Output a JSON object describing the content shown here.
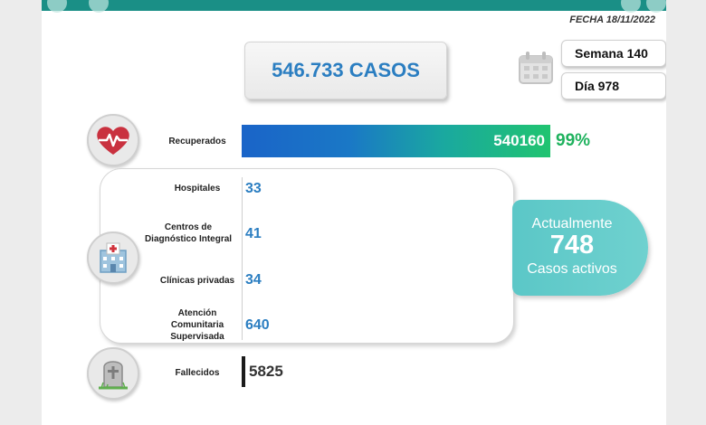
{
  "header": {
    "date_label": "FECHA 18/11/2022"
  },
  "total": {
    "label": "546.733 CASOS"
  },
  "period": {
    "week_label": "Semana 140",
    "day_label": "Día 978"
  },
  "recovered": {
    "label": "Recuperados",
    "value": "540160",
    "percent": "99%"
  },
  "hospitalization": {
    "items": [
      {
        "label": "Hospitales",
        "value": "33"
      },
      {
        "label": "Centros de\nDiagnóstico Integral",
        "value": "41"
      },
      {
        "label": "Clínicas privadas",
        "value": "34"
      },
      {
        "label": "Atención\nComunitaria\nSupervisada",
        "value": "640"
      }
    ]
  },
  "active": {
    "line1": "Actualmente",
    "value": "748",
    "line2": "Casos activos"
  },
  "deaths": {
    "label": "Fallecidos",
    "value": "5825"
  },
  "colors": {
    "accent_blue": "#2b7ec1",
    "recovered_green": "#1fb25e",
    "active_teal": "#5bc7c7",
    "banner_teal": "#1a8f86"
  },
  "icons": {
    "calendar": "calendar-icon",
    "recovered": "heart-pulse-icon",
    "hospital": "hospital-icon",
    "deaths": "tombstone-icon"
  }
}
